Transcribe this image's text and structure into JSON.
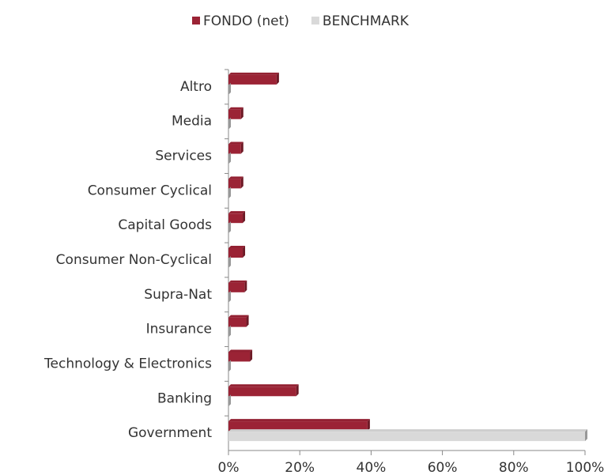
{
  "chart_data": {
    "type": "bar",
    "orientation": "horizontal",
    "categories": [
      "Altro",
      "Media",
      "Services",
      "Consumer Cyclical",
      "Capital Goods",
      "Consumer Non-Cyclical",
      "Supra-Nat",
      "Insurance",
      "Technology & Electronics",
      "Banking",
      "Government"
    ],
    "series": [
      {
        "name": "FONDO (net)",
        "color": "#9b2335",
        "values": [
          13.5,
          3.5,
          3.5,
          3.5,
          4,
          4,
          4.5,
          5,
          6,
          19,
          39
        ]
      },
      {
        "name": "BENCHMARK",
        "color": "#d9d9d9",
        "values": [
          0,
          0,
          0,
          0,
          0,
          0,
          0,
          0,
          0,
          0,
          100
        ]
      }
    ],
    "xlim": [
      0,
      100
    ],
    "xticks": [
      {
        "value": 0,
        "label": "0%"
      },
      {
        "value": 20,
        "label": "20%"
      },
      {
        "value": 40,
        "label": "40%"
      },
      {
        "value": 60,
        "label": "60%"
      },
      {
        "value": 80,
        "label": "80%"
      },
      {
        "value": 100,
        "label": "100%"
      }
    ],
    "legend": "top"
  }
}
